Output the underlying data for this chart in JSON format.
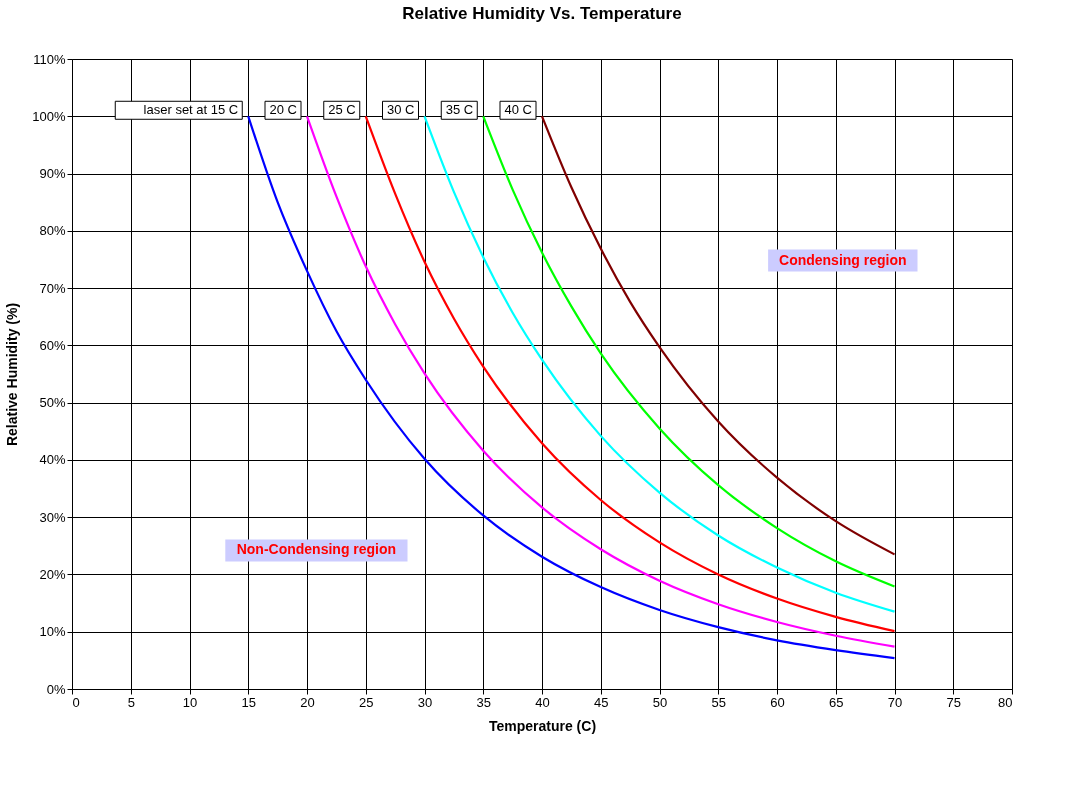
{
  "chart_data": {
    "type": "line",
    "title": "Relative Humidity Vs. Temperature",
    "xlabel": "Temperature (C)",
    "ylabel": "Relative Humidity (%)",
    "series": [
      {
        "color": "#0000ff",
        "x": [
          15,
          17.5,
          20,
          22.5,
          25,
          30,
          35,
          40,
          45,
          50,
          55,
          60,
          65,
          70
        ],
        "values": [
          100,
          85,
          73,
          62.5,
          54,
          40.2,
          30.3,
          23.1,
          17.8,
          13.8,
          10.8,
          8.5,
          6.8,
          5.4
        ]
      },
      {
        "color": "#ff00ff",
        "x": [
          20,
          22.5,
          25,
          27.5,
          30,
          35,
          40,
          45,
          50,
          55,
          60,
          65,
          70
        ],
        "values": [
          100,
          86,
          73.8,
          63.7,
          55.1,
          41.6,
          31.7,
          24.4,
          18.9,
          14.8,
          11.7,
          9.3,
          7.4
        ]
      },
      {
        "color": "#ff0000",
        "x": [
          25,
          27.5,
          30,
          32.5,
          35,
          40,
          45,
          50,
          55,
          60,
          65,
          70
        ],
        "values": [
          100,
          86.5,
          74.6,
          64.7,
          56.3,
          42.9,
          33,
          25.6,
          20,
          15.8,
          12.6,
          10.1
        ]
      },
      {
        "color": "#00ffff",
        "x": [
          30,
          32.5,
          35,
          37.5,
          40,
          45,
          50,
          55,
          60,
          65,
          70
        ],
        "values": [
          100,
          86.8,
          75.4,
          65.7,
          57.5,
          44.2,
          34.3,
          26.8,
          21.2,
          16.8,
          13.5
        ]
      },
      {
        "color": "#00ff00",
        "x": [
          35,
          37.5,
          40,
          42.5,
          45,
          50,
          55,
          60,
          65,
          70
        ],
        "values": [
          100,
          87.2,
          76.2,
          66.8,
          58.6,
          45.5,
          35.6,
          28.1,
          22.3,
          17.9
        ]
      },
      {
        "color": "#800000",
        "x": [
          40,
          42.5,
          45,
          47.5,
          50,
          55,
          60,
          65,
          70
        ],
        "values": [
          100,
          87.6,
          76.9,
          67.6,
          59.7,
          46.7,
          36.9,
          29.3,
          23.5
        ]
      }
    ],
    "xlim": [
      0,
      80
    ],
    "xticks": [
      0,
      5,
      10,
      15,
      20,
      25,
      30,
      35,
      40,
      45,
      50,
      55,
      60,
      65,
      70,
      75,
      80
    ],
    "ylim": [
      0,
      110
    ],
    "yticks": [
      {
        "value": 0,
        "label": "0%"
      },
      {
        "value": 10,
        "label": "10%"
      },
      {
        "value": 20,
        "label": "20%"
      },
      {
        "value": 30,
        "label": "30%"
      },
      {
        "value": 40,
        "label": "40%"
      },
      {
        "value": 50,
        "label": "50%"
      },
      {
        "value": 60,
        "label": "60%"
      },
      {
        "value": 70,
        "label": "70%"
      },
      {
        "value": 80,
        "label": "80%"
      },
      {
        "value": 90,
        "label": "90%"
      },
      {
        "value": 100,
        "label": "100%"
      },
      {
        "value": 110,
        "label": "110%"
      }
    ],
    "grid": true,
    "marker": "none",
    "line_style": "solid",
    "annotations": [
      {
        "text": "laser set at 15 C",
        "x": 15,
        "y": 100
      },
      {
        "text": "20 C",
        "x": 20,
        "y": 100
      },
      {
        "text": "25 C",
        "x": 25,
        "y": 100
      },
      {
        "text": "30 C",
        "x": 30,
        "y": 100
      },
      {
        "text": "35 C",
        "x": 35,
        "y": 100
      },
      {
        "text": "40 C",
        "x": 40,
        "y": 100
      },
      "Condensing region",
      "Non-Condensing region"
    ]
  }
}
